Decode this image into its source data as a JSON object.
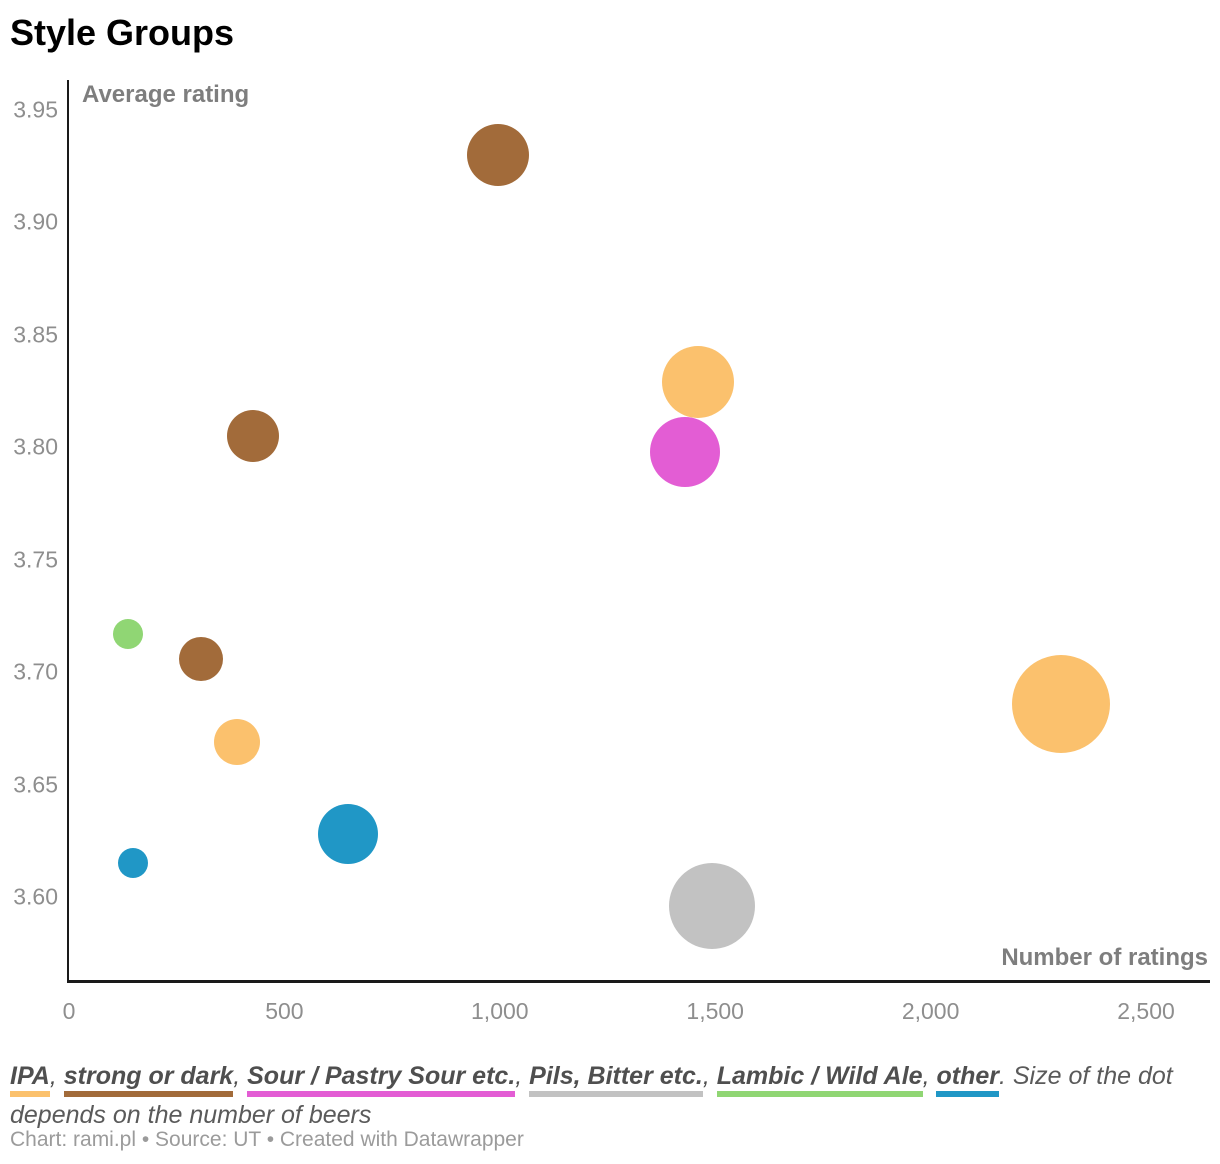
{
  "header": {
    "title": "Style Groups"
  },
  "axes": {
    "y": {
      "label": "Average rating",
      "ticks": [
        {
          "label": "3.95",
          "value": 3.95
        },
        {
          "label": "3.90",
          "value": 3.9
        },
        {
          "label": "3.85",
          "value": 3.85
        },
        {
          "label": "3.80",
          "value": 3.8
        },
        {
          "label": "3.75",
          "value": 3.75
        },
        {
          "label": "3.70",
          "value": 3.7
        },
        {
          "label": "3.65",
          "value": 3.65
        },
        {
          "label": "3.60",
          "value": 3.6
        }
      ]
    },
    "x": {
      "label": "Number of ratings",
      "ticks": [
        {
          "label": "0",
          "value": 0
        },
        {
          "label": "500",
          "value": 500
        },
        {
          "label": "1,000",
          "value": 1000
        },
        {
          "label": "1,500",
          "value": 1500
        },
        {
          "label": "2,000",
          "value": 2000
        },
        {
          "label": "2,500",
          "value": 2500
        }
      ]
    }
  },
  "legend": {
    "items": [
      {
        "label": "IPA",
        "color": "#FBC16D"
      },
      {
        "label": "strong or dark",
        "color": "#A26B3A"
      },
      {
        "label": "Sour / Pastry Sour etc.",
        "color": "#E35DD4"
      },
      {
        "label": "Pils, Bitter etc.",
        "color": "#C2C2C2"
      },
      {
        "label": "Lambic / Wild Ale",
        "color": "#90D674"
      },
      {
        "label": "other",
        "color": "#2097C6"
      }
    ],
    "separator": ", ",
    "suffix": ". Size of the dot depends on the number of beers"
  },
  "footer": {
    "text": "Chart: rami.pl • Source: UT • Created with Datawrapper"
  },
  "chart_data": {
    "type": "scatter",
    "title": "Style Groups",
    "xlabel": "Number of ratings",
    "ylabel": "Average rating",
    "xlim": [
      0,
      2650
    ],
    "ylim": [
      3.56,
      3.965
    ],
    "grid": false,
    "legend_position": "below",
    "size_note": "Size of the dot depends on the number of beers",
    "points": [
      {
        "group": "strong or dark",
        "x": 995,
        "y": 3.93,
        "r": 31
      },
      {
        "group": "IPA",
        "x": 1460,
        "y": 3.829,
        "r": 36
      },
      {
        "group": "Sour / Pastry Sour etc.",
        "x": 1430,
        "y": 3.798,
        "r": 35
      },
      {
        "group": "strong or dark",
        "x": 427,
        "y": 3.805,
        "r": 26
      },
      {
        "group": "Lambic / Wild Ale",
        "x": 137,
        "y": 3.717,
        "r": 15
      },
      {
        "group": "strong or dark",
        "x": 306,
        "y": 3.706,
        "r": 22
      },
      {
        "group": "IPA",
        "x": 390,
        "y": 3.669,
        "r": 23
      },
      {
        "group": "other",
        "x": 648,
        "y": 3.628,
        "r": 30
      },
      {
        "group": "other",
        "x": 149,
        "y": 3.615,
        "r": 15
      },
      {
        "group": "IPA",
        "x": 2303,
        "y": 3.686,
        "r": 49
      },
      {
        "group": "Pils, Bitter etc.",
        "x": 1492,
        "y": 3.596,
        "r": 43
      }
    ]
  }
}
